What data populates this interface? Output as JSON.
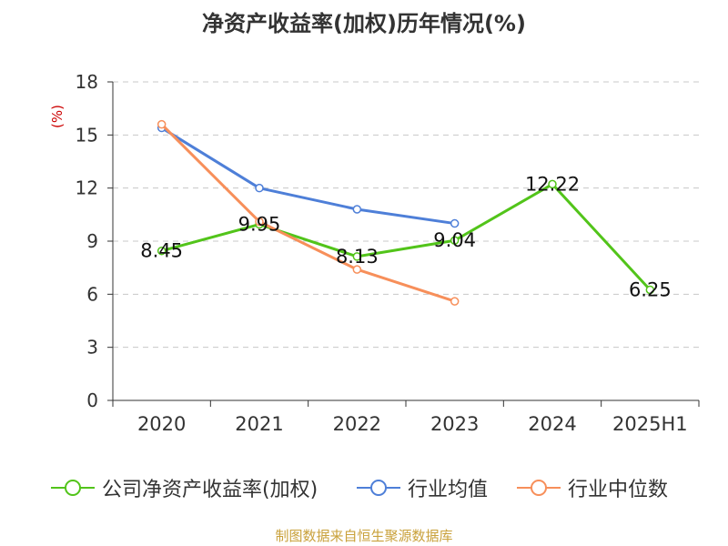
{
  "title": "净资产收益率(加权)历年情况(%)",
  "source": "制图数据来自恒生聚源数据库",
  "chart_data": {
    "type": "line",
    "title": "净资产收益率(加权)历年情况(%)",
    "ylabel": "(%)",
    "categories": [
      "2020",
      "2021",
      "2022",
      "2023",
      "2024",
      "2025H1"
    ],
    "ylim": [
      0,
      18
    ],
    "yticks": [
      0,
      3,
      6,
      9,
      12,
      15,
      18
    ],
    "grid": true,
    "legend_position": "bottom",
    "series": [
      {
        "name": "公司净资产收益率(加权)",
        "color": "#52c41a",
        "values": [
          8.45,
          9.95,
          8.13,
          9.04,
          12.22,
          6.25
        ],
        "labels": [
          "8.45",
          "9.95",
          "8.13",
          "9.04",
          "12.22",
          "6.25"
        ]
      },
      {
        "name": "行业均值",
        "color": "#4e7fd8",
        "values": [
          15.4,
          12.0,
          10.8,
          10.0,
          null,
          null
        ]
      },
      {
        "name": "行业中位数",
        "color": "#f78f5a",
        "values": [
          15.6,
          10.1,
          7.4,
          5.6,
          null,
          null
        ]
      }
    ]
  }
}
